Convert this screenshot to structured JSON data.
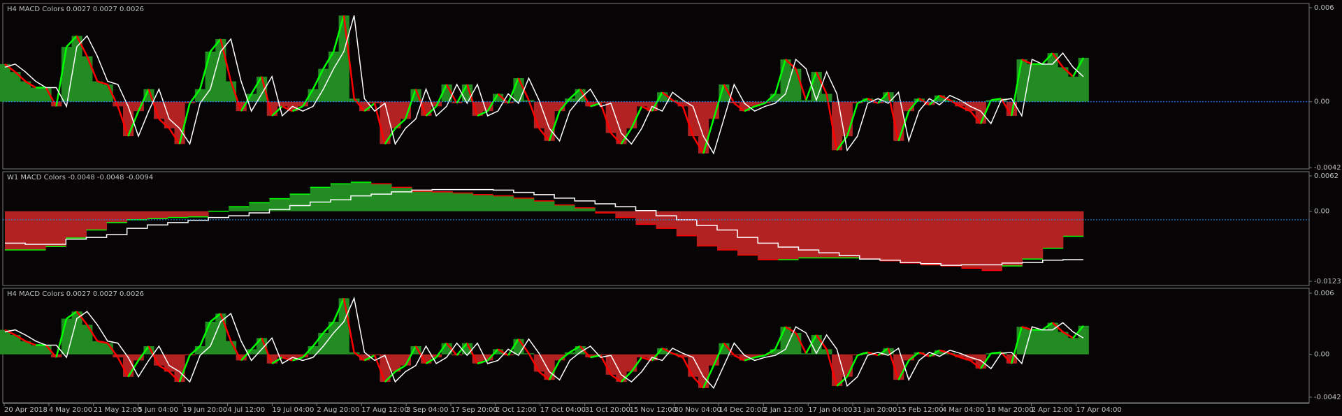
{
  "chart_data": [
    {
      "type": "bar",
      "title": "H4 MACD Colors 0.0027 0.0027 0.0026",
      "ylim": [
        -0.0042,
        0.006
      ],
      "yticks": [
        0.006,
        {
          "value": 0,
          "label": "0.00"
        },
        -0.0042
      ],
      "level": 0,
      "up_color": "#228b22",
      "down_color": "#b22222",
      "line_up_color": "#00ff00",
      "line_down_color": "#ff0000",
      "signal_color": "#ffffff",
      "level_color": "#1e90ff",
      "values": [
        0.0024,
        0.0019,
        0.0013,
        0.0009,
        0.0009,
        -0.0003,
        0.0035,
        0.0042,
        0.0029,
        0.0013,
        0.0011,
        -0.0003,
        -0.0022,
        -0.0006,
        0.0008,
        -0.0011,
        -0.0017,
        -0.0027,
        -0.0001,
        0.0008,
        0.0032,
        0.004,
        0.0013,
        -0.0006,
        0.0005,
        0.0016,
        -0.0009,
        -0.0003,
        -0.0006,
        -0.0003,
        0.0008,
        0.0021,
        0.0032,
        0.0055,
        0.0002,
        -0.0006,
        -0.0001,
        -0.0027,
        -0.0017,
        -0.0011,
        0.0008,
        -0.0009,
        -0.0003,
        0.0011,
        -0.0001,
        0.0011,
        -0.0009,
        -0.0006,
        0.0005,
        -0.0001,
        0.0015,
        0.0001,
        -0.0017,
        -0.0025,
        -0.0006,
        0.0002,
        0.0008,
        -0.0003,
        -0.0001,
        -0.002,
        -0.0027,
        -0.0017,
        -0.0003,
        -0.0006,
        0.0006,
        0.0001,
        -0.0003,
        -0.0022,
        -0.0033,
        -0.0011,
        0.0011,
        -0.0001,
        -0.0006,
        -0.0003,
        -0.0001,
        0.0005,
        0.0027,
        0.0021,
        0.0001,
        0.0019,
        0.0005,
        -0.0031,
        -0.0022,
        -0.0001,
        0.0002,
        -0.0001,
        0.0006,
        -0.0025,
        -0.0006,
        0.0002,
        -0.0002,
        0.0004,
        0.0001,
        -0.0003,
        -0.0006,
        -0.0014,
        0.0001,
        0.0002,
        -0.0009,
        0.0027,
        0.0024,
        0.0024,
        0.0031,
        0.0022,
        0.0016,
        0.0028
      ],
      "signal": [
        0.0022,
        0.0024,
        0.0019,
        0.0013,
        0.0009,
        0.0009,
        -0.0003,
        0.0035,
        0.0042,
        0.0029,
        0.0013,
        0.0011,
        -0.0003,
        -0.0022,
        -0.0006,
        0.0008,
        -0.0011,
        -0.0017,
        -0.0027,
        -0.0001,
        0.0008,
        0.0032,
        0.004,
        0.0013,
        -0.0006,
        0.0005,
        0.0016,
        -0.0009,
        -0.0003,
        -0.0006,
        -0.0003,
        0.0008,
        0.0021,
        0.0032,
        0.0055,
        0.0002,
        -0.0006,
        -0.0001,
        -0.0027,
        -0.0017,
        -0.0011,
        0.0008,
        -0.0009,
        -0.0003,
        0.0011,
        -0.0001,
        0.0011,
        -0.0009,
        -0.0006,
        0.0005,
        -0.0001,
        0.0015,
        0.0001,
        -0.0017,
        -0.0025,
        -0.0006,
        0.0002,
        0.0008,
        -0.0003,
        -0.0001,
        -0.002,
        -0.0027,
        -0.0017,
        -0.0003,
        -0.0006,
        0.0006,
        0.0001,
        -0.0003,
        -0.0022,
        -0.0033,
        -0.0011,
        0.0011,
        -0.0001,
        -0.0006,
        -0.0003,
        -0.0001,
        0.0005,
        0.0027,
        0.0021,
        0.0001,
        0.0019,
        0.0005,
        -0.0031,
        -0.0022,
        -0.0001,
        0.0002,
        -0.0001,
        0.0006,
        -0.0025,
        -0.0006,
        0.0002,
        -0.0002,
        0.0004,
        0.0001,
        -0.0003,
        -0.0006,
        -0.0014,
        0.0001,
        0.0002,
        -0.0009,
        0.0027,
        0.0024,
        0.0024,
        0.0031,
        0.0022,
        0.0016
      ]
    },
    {
      "type": "step",
      "title": "W1 MACD Colors -0.0048 -0.0048 -0.0094",
      "ylim": [
        -0.0123,
        0.0062
      ],
      "yticks": [
        0.0062,
        {
          "value": 0,
          "label": "0.00"
        },
        -0.0123
      ],
      "level": -0.0015,
      "up_color": "#228b22",
      "down_color": "#b22222",
      "line_up_color": "#00ff00",
      "line_down_color": "#ff0000",
      "signal_color": "#ffffff",
      "level_color": "#1e90ff",
      "values": [
        -0.0068,
        -0.0068,
        -0.0062,
        -0.0047,
        -0.0033,
        -0.002,
        -0.0015,
        -0.0013,
        -0.0011,
        -0.001,
        0,
        0.0008,
        0.0015,
        0.0022,
        0.003,
        0.0042,
        0.0048,
        0.0051,
        0.0048,
        0.0042,
        0.0035,
        0.0034,
        0.0032,
        0.0029,
        0.0027,
        0.0023,
        0.0018,
        0.0011,
        0.0006,
        -0.0003,
        -0.0011,
        -0.0023,
        -0.003,
        -0.0043,
        -0.0061,
        -0.0068,
        -0.0077,
        -0.0085,
        -0.0085,
        -0.0082,
        -0.0082,
        -0.0082,
        -0.0084,
        -0.0087,
        -0.0091,
        -0.0094,
        -0.0096,
        -0.01,
        -0.0104,
        -0.0096,
        -0.0084,
        -0.0065,
        -0.0044
      ],
      "signal": [
        -0.0056,
        -0.0058,
        -0.0058,
        -0.0049,
        -0.0046,
        -0.0041,
        -0.003,
        -0.0024,
        -0.002,
        -0.0016,
        -0.0011,
        -0.0008,
        -0.0003,
        0.0003,
        0.001,
        0.0016,
        0.002,
        0.0027,
        0.003,
        0.0034,
        0.0037,
        0.0038,
        0.0038,
        0.0038,
        0.0037,
        0.0033,
        0.0029,
        0.0023,
        0.0018,
        0.0013,
        0.0008,
        0.0001,
        -0.0008,
        -0.0015,
        -0.0025,
        -0.0033,
        -0.0046,
        -0.0056,
        -0.0063,
        -0.0068,
        -0.0073,
        -0.0078,
        -0.0084,
        -0.0086,
        -0.009,
        -0.0092,
        -0.0095,
        -0.0094,
        -0.0094,
        -0.0091,
        -0.009,
        -0.0086,
        -0.0085
      ]
    },
    {
      "type": "bar",
      "title": "H4 MACD Colors 0.0027 0.0027 0.0026",
      "ylim": [
        -0.0042,
        0.006
      ],
      "yticks": [
        0.006,
        {
          "value": 0,
          "label": "0.00"
        },
        -0.0042
      ],
      "up_color": "#228b22",
      "down_color": "#b22222",
      "line_up_color": "#00ff00",
      "line_down_color": "#ff0000",
      "signal_color": "#ffffff",
      "values": [
        0.0024,
        0.0019,
        0.0013,
        0.0009,
        0.0009,
        -0.0003,
        0.0035,
        0.0042,
        0.0029,
        0.0013,
        0.0011,
        -0.0003,
        -0.0022,
        -0.0006,
        0.0008,
        -0.0011,
        -0.0017,
        -0.0027,
        -0.0001,
        0.0008,
        0.0032,
        0.004,
        0.0013,
        -0.0006,
        0.0005,
        0.0016,
        -0.0009,
        -0.0003,
        -0.0006,
        -0.0003,
        0.0008,
        0.0021,
        0.0032,
        0.0055,
        0.0002,
        -0.0006,
        -0.0001,
        -0.0027,
        -0.0017,
        -0.0011,
        0.0008,
        -0.0009,
        -0.0003,
        0.0011,
        -0.0001,
        0.0011,
        -0.0009,
        -0.0006,
        0.0005,
        -0.0001,
        0.0015,
        0.0001,
        -0.0017,
        -0.0025,
        -0.0006,
        0.0002,
        0.0008,
        -0.0003,
        -0.0001,
        -0.002,
        -0.0027,
        -0.0017,
        -0.0003,
        -0.0006,
        0.0006,
        0.0001,
        -0.0003,
        -0.0022,
        -0.0033,
        -0.0011,
        0.0011,
        -0.0001,
        -0.0006,
        -0.0003,
        -0.0001,
        0.0005,
        0.0027,
        0.0021,
        0.0001,
        0.0019,
        0.0005,
        -0.0031,
        -0.0022,
        -0.0001,
        0.0002,
        -0.0001,
        0.0006,
        -0.0025,
        -0.0006,
        0.0002,
        -0.0002,
        0.0004,
        0.0001,
        -0.0003,
        -0.0006,
        -0.0014,
        0.0001,
        0.0002,
        -0.0009,
        0.0027,
        0.0024,
        0.0024,
        0.0031,
        0.0022,
        0.0016,
        0.0028
      ],
      "signal": [
        0.0022,
        0.0024,
        0.0019,
        0.0013,
        0.0009,
        0.0009,
        -0.0003,
        0.0035,
        0.0042,
        0.0029,
        0.0013,
        0.0011,
        -0.0003,
        -0.0022,
        -0.0006,
        0.0008,
        -0.0011,
        -0.0017,
        -0.0027,
        -0.0001,
        0.0008,
        0.0032,
        0.004,
        0.0013,
        -0.0006,
        0.0005,
        0.0016,
        -0.0009,
        -0.0003,
        -0.0006,
        -0.0003,
        0.0008,
        0.0021,
        0.0032,
        0.0055,
        0.0002,
        -0.0006,
        -0.0001,
        -0.0027,
        -0.0017,
        -0.0011,
        0.0008,
        -0.0009,
        -0.0003,
        0.0011,
        -0.0001,
        0.0011,
        -0.0009,
        -0.0006,
        0.0005,
        -0.0001,
        0.0015,
        0.0001,
        -0.0017,
        -0.0025,
        -0.0006,
        0.0002,
        0.0008,
        -0.0003,
        -0.0001,
        -0.002,
        -0.0027,
        -0.0017,
        -0.0003,
        -0.0006,
        0.0006,
        0.0001,
        -0.0003,
        -0.0022,
        -0.0033,
        -0.0011,
        0.0011,
        -0.0001,
        -0.0006,
        -0.0003,
        -0.0001,
        0.0005,
        0.0027,
        0.0021,
        0.0001,
        0.0019,
        0.0005,
        -0.0031,
        -0.0022,
        -0.0001,
        0.0002,
        -0.0001,
        0.0006,
        -0.0025,
        -0.0006,
        0.0002,
        -0.0002,
        0.0004,
        0.0001,
        -0.0003,
        -0.0006,
        -0.0014,
        0.0001,
        0.0002,
        -0.0009,
        0.0027,
        0.0024,
        0.0024,
        0.0031,
        0.0022,
        0.0016
      ]
    }
  ],
  "time_axis": [
    "20 Apr 2018",
    "4 May 20:00",
    "21 May 12:00",
    "5 Jun 04:00",
    "19 Jun 20:00",
    "4 Jul 12:00",
    "19 Jul 04:00",
    "2 Aug 20:00",
    "17 Aug 12:00",
    "3 Sep 04:00",
    "17 Sep 20:00",
    "2 Oct 12:00",
    "17 Oct 04:00",
    "31 Oct 20:00",
    "15 Nov 12:00",
    "30 Nov 04:00",
    "14 Dec 20:00",
    "2 Jan 12:00",
    "17 Jan 04:00",
    "31 Jan 20:00",
    "15 Feb 12:00",
    "4 Mar 04:00",
    "18 Mar 20:00",
    "2 Apr 12:00",
    "17 Apr 04:00"
  ]
}
